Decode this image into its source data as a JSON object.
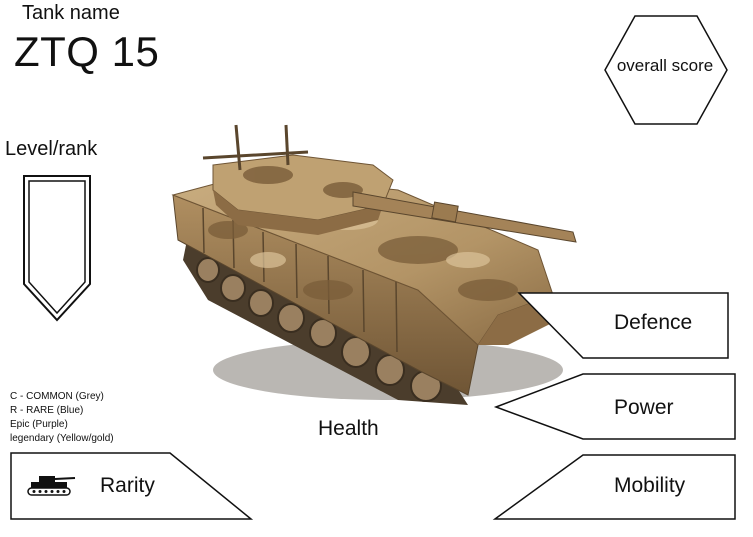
{
  "header": {
    "tank_name_label": "Tank name",
    "tank_name": "ZTQ 15"
  },
  "level": {
    "label": "Level/rank"
  },
  "score": {
    "label": "overall score"
  },
  "rarity_legend": [
    "C - COMMON (Grey)",
    "R - RARE (Blue)",
    "Epic (Purple)",
    "legendary (Yellow/gold)"
  ],
  "stats": {
    "health_label": "Health",
    "defence_label": "Defence",
    "power_label": "Power",
    "mobility_label": "Mobility",
    "rarity_label": "Rarity"
  },
  "icons": {
    "rarity_badge": "tank-icon",
    "level_badge": "shield-icon",
    "score_badge": "hexagon-icon"
  },
  "colors": {
    "outline": "#111111",
    "camo_light": "#c9ad80",
    "camo_mid": "#a9875a",
    "camo_dark": "#6f5535"
  }
}
